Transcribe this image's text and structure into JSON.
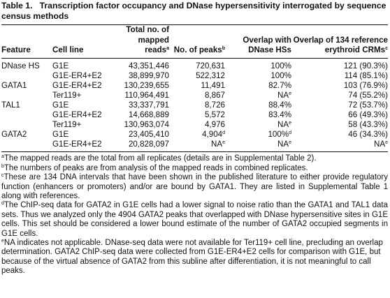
{
  "caption": {
    "label": "Table 1.",
    "title": "Transcription factor occupancy and DNase hypersensitivity interrogated by sequence census methods"
  },
  "table": {
    "headers": {
      "feature": "Feature",
      "cell_line": "Cell line",
      "mapped_reads": "Total no. of mapped reads",
      "mapped_reads_mark": "a",
      "peaks": "No. of peaks",
      "peaks_mark": "b",
      "overlap": "Overlap with DNase HSs",
      "crm": "Overlap of 134 reference erythroid CRMs",
      "crm_mark": "c"
    },
    "rows": [
      {
        "feature": "DNase HS",
        "cell_line": "G1E",
        "reads": "43,351,446",
        "peaks": "720,631",
        "peaks_mark": "",
        "overlap": "100%",
        "overlap_mark": "",
        "crm": "121 (90.3%)",
        "crm_mark": ""
      },
      {
        "feature": "",
        "cell_line": "G1E-ER4+E2",
        "reads": "38,899,970",
        "peaks": "522,312",
        "peaks_mark": "",
        "overlap": "100%",
        "overlap_mark": "",
        "crm": "114 (85.1%)",
        "crm_mark": ""
      },
      {
        "feature": "GATA1",
        "cell_line": "G1E-ER4+E2",
        "reads": "130,239,655",
        "peaks": "11,491",
        "peaks_mark": "",
        "overlap": "82.7%",
        "overlap_mark": "",
        "crm": "103 (76.9%)",
        "crm_mark": ""
      },
      {
        "feature": "",
        "cell_line": "Ter119+",
        "reads": "110,964,491",
        "peaks": "8,867",
        "peaks_mark": "",
        "overlap": "NA",
        "overlap_mark": "e",
        "crm": "74 (55.2%)",
        "crm_mark": ""
      },
      {
        "feature": "TAL1",
        "cell_line": "G1E",
        "reads": "33,337,791",
        "peaks": "8,726",
        "peaks_mark": "",
        "overlap": "88.4%",
        "overlap_mark": "",
        "crm": "72 (53.7%)",
        "crm_mark": ""
      },
      {
        "feature": "",
        "cell_line": "G1E-ER4+E2",
        "reads": "14,668,889",
        "peaks": "5,572",
        "peaks_mark": "",
        "overlap": "83.4%",
        "overlap_mark": "",
        "crm": "66 (49.3%)",
        "crm_mark": ""
      },
      {
        "feature": "",
        "cell_line": "Ter119+",
        "reads": "130,963,074",
        "peaks": "4,976",
        "peaks_mark": "",
        "overlap": "NA",
        "overlap_mark": "e",
        "crm": "58 (43.3%)",
        "crm_mark": ""
      },
      {
        "feature": "GATA2",
        "cell_line": "G1E",
        "reads": "23,405,410",
        "peaks": "4,904",
        "peaks_mark": "d",
        "overlap": "100%",
        "overlap_mark": "d",
        "crm": "46 (34.3%)",
        "crm_mark": ""
      },
      {
        "feature": "",
        "cell_line": "G1E-ER4+E2",
        "reads": "20,828,097",
        "peaks": "NA",
        "peaks_mark": "e",
        "overlap": "NA",
        "overlap_mark": "e",
        "crm": "NA",
        "crm_mark": "e"
      }
    ]
  },
  "footnotes": [
    {
      "mark": "a",
      "text": "The mapped reads are the total from all replicates (details are in Supplemental Table 2)."
    },
    {
      "mark": "b",
      "text": "The numbers of peaks are from analysis of the mapped reads in combined replicates."
    },
    {
      "mark": "c",
      "text": "These are 134 DNA intervals that have been shown in the published literature to either provide regulatory function (enhancers or promoters) and/or are bound by GATA1. They are listed in Supplemental Table 1 along with references."
    },
    {
      "mark": "d",
      "text": "The ChIP-seq data for GATA2 in G1E cells had a lower signal to noise ratio than the GATA1 and TAL1 data sets. Thus we analyzed only the 4904 GATA2 peaks that overlapped with DNase hypersensitive sites in G1E cells. This set should be considered a lower bound estimate of the number of GATA2 occupied segments in G1E cells."
    },
    {
      "mark": "e",
      "text": "NA indicates not applicable. DNase-seq data were not available for Ter119+ cell line, precluding an overlap determination. GATA2 ChIP-seq data were collected from G1E-ER4+E2 cells for comparison with G1E, but because of the virtual absence of GATA2 from this subline after differentiation, it is not meaningful to call peaks."
    }
  ]
}
